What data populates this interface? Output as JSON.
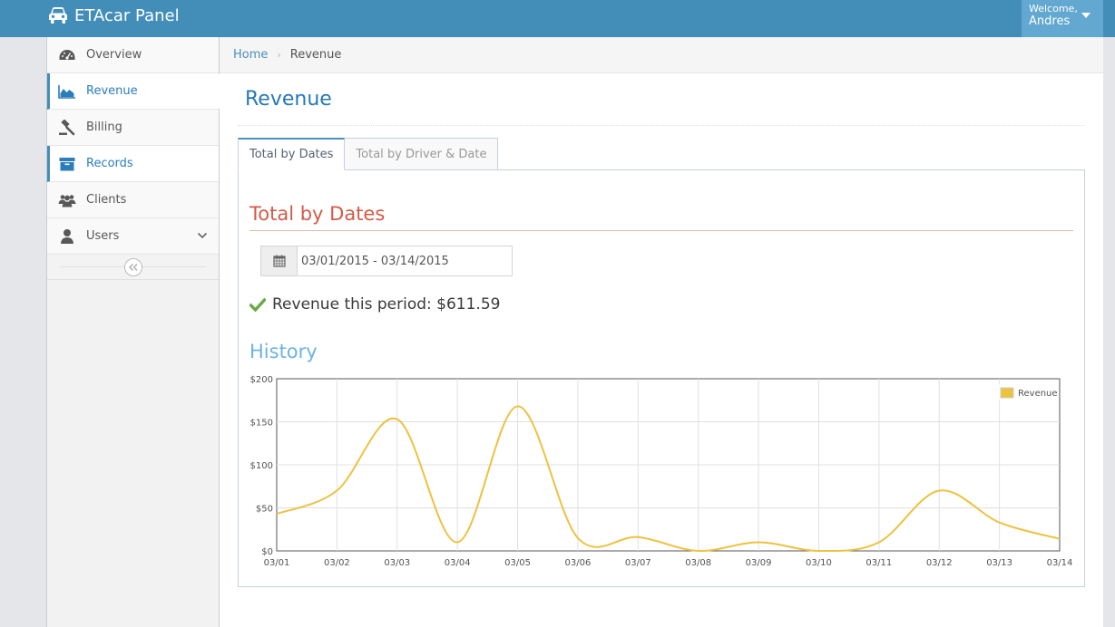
{
  "app": {
    "title": "ETAcar Panel",
    "brand_color": "#438eb9"
  },
  "user_menu": {
    "welcome": "Welcome,",
    "name": "Andres"
  },
  "sidebar": {
    "items": [
      {
        "label": "Overview",
        "icon": "tachometer-icon"
      },
      {
        "label": "Revenue",
        "icon": "area-chart-icon",
        "active": true
      },
      {
        "label": "Billing",
        "icon": "gavel-icon"
      },
      {
        "label": "Records",
        "icon": "archive-icon",
        "selected": true
      },
      {
        "label": "Clients",
        "icon": "users-icon"
      },
      {
        "label": "Users",
        "icon": "user-icon",
        "has_submenu": true
      }
    ]
  },
  "breadcrumb": {
    "home": "Home",
    "current": "Revenue"
  },
  "page": {
    "title": "Revenue"
  },
  "tabs": [
    {
      "label": "Total by Dates",
      "active": true
    },
    {
      "label": "Total by Driver & Date",
      "active": false
    }
  ],
  "section": {
    "title": "Total by Dates",
    "date_range": "03/01/2015 - 03/14/2015",
    "revenue_text": "Revenue this period: $611.59"
  },
  "history": {
    "title": "History"
  },
  "chart_data": {
    "type": "line",
    "x": [
      "03/01",
      "03/02",
      "03/03",
      "03/04",
      "03/05",
      "03/06",
      "03/07",
      "03/08",
      "03/09",
      "03/10",
      "03/11",
      "03/12",
      "03/13",
      "03/14"
    ],
    "series": [
      {
        "name": "Revenue",
        "color": "#edc240",
        "values": [
          43,
          70,
          153,
          10,
          168,
          15,
          16,
          0,
          10,
          0,
          10,
          70,
          33,
          14
        ]
      }
    ],
    "y_ticks": [
      "$0",
      "$50",
      "$100",
      "$150",
      "$200"
    ],
    "ylim": [
      0,
      200
    ],
    "grid": true,
    "legend": "top-right",
    "smooth": true
  }
}
